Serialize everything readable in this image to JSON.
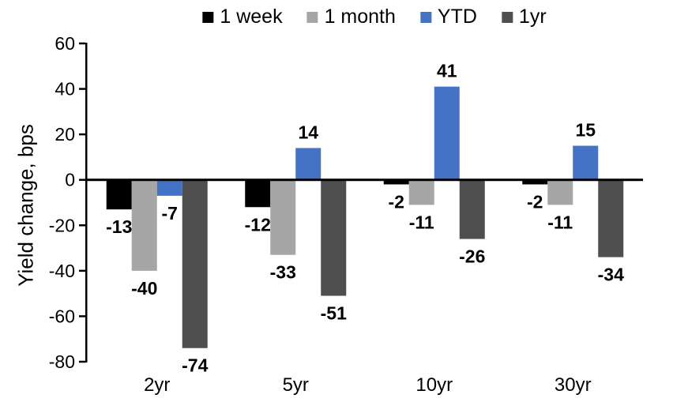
{
  "chart_data": {
    "type": "bar",
    "title": "",
    "xlabel": "",
    "ylabel": "Yield change, bps",
    "categories": [
      "2yr",
      "5yr",
      "10yr",
      "30yr"
    ],
    "series": [
      {
        "name": "1 week",
        "color": "#000000",
        "values": [
          -13,
          -12,
          -2,
          -2
        ]
      },
      {
        "name": "1 month",
        "color": "#a6a6a6",
        "values": [
          -40,
          -33,
          -11,
          -11
        ]
      },
      {
        "name": "YTD",
        "color": "#4472c4",
        "values": [
          -7,
          14,
          41,
          15
        ]
      },
      {
        "name": "1yr",
        "color": "#4f4f4f",
        "values": [
          -74,
          -51,
          -26,
          -34
        ]
      }
    ],
    "ylim": [
      -80,
      60
    ],
    "ytick_step": 20,
    "grid": false,
    "legend_position": "top",
    "axis_color": "#000000",
    "background_color": "#ffffff"
  }
}
